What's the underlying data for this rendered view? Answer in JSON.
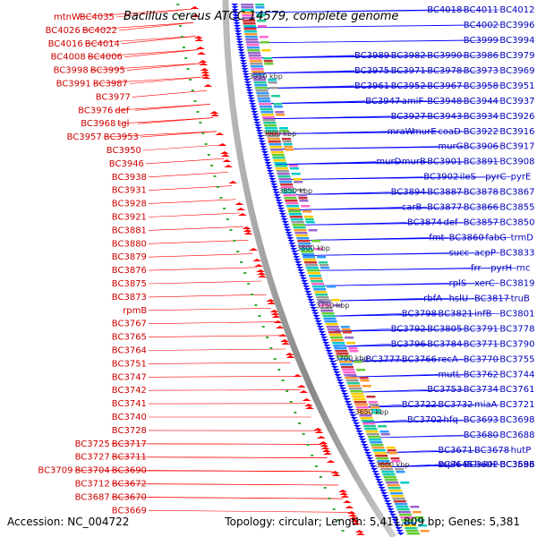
{
  "title": "Bacillus cereus ATCC 14579, complete genome",
  "footer": {
    "accession": "Accession: NC_004722",
    "summary": "Topology: circular; Length: 5,411,809 bp; Genes: 5,381"
  },
  "colors": {
    "left_label": "#cc0000",
    "right_label": "#0000bb",
    "backbone": "#888888",
    "reverse_arrow": "#ff0000",
    "forward_arrow": "#0000ff"
  },
  "ticks": [
    "3950 kbp",
    "3900 kbp",
    "3850 kbp",
    "3800 kbp",
    "3750 kbp",
    "3700 kbp",
    "3650 kbp",
    "3600 kbp"
  ],
  "left_labels": [
    "mtnW",
    "BC4035",
    "BC4026",
    "BC4022",
    "BC4016",
    "BC4014",
    "BC4008",
    "BC4006",
    "BC3998",
    "BC3995",
    "BC3991",
    "BC3987",
    "BC3977",
    "BC3976",
    "def",
    "BC3968",
    "tgl",
    "BC3957",
    "BC3953",
    "BC3950",
    "BC3946",
    "BC3938",
    "BC3931",
    "BC3928",
    "BC3921",
    "BC3881",
    "BC3880",
    "BC3879",
    "BC3876",
    "BC3875",
    "BC3873",
    "rpmB",
    "BC3767",
    "BC3765",
    "BC3764",
    "BC3751",
    "BC3747",
    "BC3742",
    "BC3741",
    "BC3740",
    "BC3728",
    "BC3725",
    "BC3717",
    "BC3727",
    "BC3711",
    "BC3709",
    "BC3704",
    "BC3690",
    "BC3712",
    "BC3672",
    "BC3687",
    "BC3670",
    "BC3669"
  ],
  "right_labels": [
    "BC4018",
    "BC4011",
    "BC4012",
    "BC4002",
    "BC3996",
    "BC3999",
    "BC3994",
    "BC3989",
    "BC3982",
    "BC3990",
    "BC3986",
    "BC3979",
    "BC3975",
    "BC3971",
    "BC3978",
    "BC3973",
    "BC3969",
    "BC3961",
    "BC3952",
    "BC3967",
    "BC3958",
    "BC3951",
    "BC3947",
    "amiF",
    "BC3948",
    "BC3944",
    "BC3937",
    "BC3927",
    "BC3943",
    "BC3934",
    "BC3926",
    "mraW",
    "murE",
    "coaD",
    "BC3922",
    "BC3916",
    "murG",
    "BC3906",
    "BC3917",
    "murD",
    "murB",
    "BC3901",
    "BC3891",
    "BC3908",
    "BC3902",
    "ileS",
    "pyrC",
    "pyrE",
    "BC3894",
    "BC3887",
    "BC3878",
    "BC3867",
    "carB",
    "BC3877",
    "BC3866",
    "BC3855",
    "BC3874",
    "def",
    "BC3857",
    "BC3850",
    "fmt",
    "BC3860",
    "fabG",
    "trmD",
    "succ",
    "acpP",
    "BC3833",
    "frr",
    "pyrH",
    "rnc",
    "rplS",
    "xerC",
    "BC3819",
    "rbfA",
    "hslU",
    "BC3817",
    "truB",
    "BC3798",
    "BC3821",
    "infB",
    "BC3801",
    "BC3792",
    "BC3805",
    "BC3791",
    "BC3778",
    "BC3796",
    "BC3784",
    "BC3771",
    "BC3790",
    "BC3777",
    "BC3766",
    "recA",
    "BC3770",
    "BC3755",
    "mutL",
    "BC3762",
    "BC3744",
    "BC3753",
    "BC3734",
    "BC3761",
    "BC3743",
    "BC3722",
    "BC3732",
    "miaA",
    "BC3721",
    "BC3702",
    "hfq",
    "BC3693",
    "BC3698",
    "BC3680",
    "BC3688",
    "BC3671",
    "BC3678",
    "hutP",
    "BC3668",
    "BC3645",
    "hutH",
    "BC3638",
    "BC3628",
    "sspN",
    "BC3602",
    "BC3596",
    "BC3585"
  ]
}
